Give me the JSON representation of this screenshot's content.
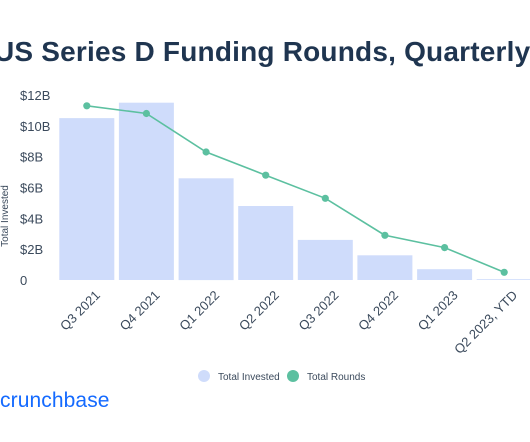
{
  "chart_data": {
    "type": "bar",
    "title": "US Series D Funding Rounds, Quarterly",
    "ylabel": "Total Invested",
    "categories": [
      "Q3 2021",
      "Q4 2021",
      "Q1 2022",
      "Q2 2022",
      "Q3 2022",
      "Q4 2022",
      "Q1 2023",
      "Q2 2023, YTD"
    ],
    "y_ticks": [
      "0",
      "$2B",
      "$4B",
      "$6B",
      "$8B",
      "$10B",
      "$12B"
    ],
    "ylim": [
      0,
      12
    ],
    "grid": false,
    "legend_position": "bottom",
    "series": [
      {
        "name": "Total Invested",
        "type": "bar",
        "unit": "billion USD",
        "color": "#cfdcfb",
        "values": [
          10.5,
          11.5,
          6.6,
          4.8,
          2.6,
          1.6,
          0.7,
          0.05
        ]
      },
      {
        "name": "Total Rounds",
        "type": "line",
        "color": "#5cc0a0",
        "values": [
          11.3,
          10.8,
          8.3,
          6.8,
          5.3,
          2.9,
          2.1,
          0.5
        ]
      }
    ]
  },
  "brand": {
    "name": "crunchbase",
    "color": "#146aff"
  }
}
